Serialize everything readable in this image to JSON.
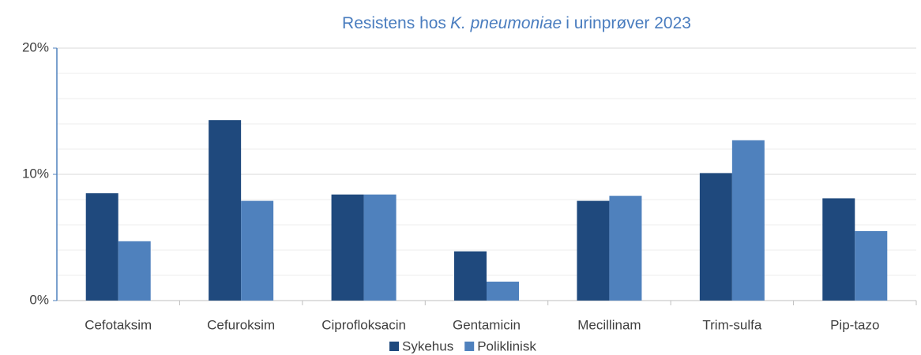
{
  "chart_data": {
    "type": "bar",
    "title": [
      "Resistens hos",
      "K. pneumoniae",
      "i urinprøver 2023"
    ],
    "categories": [
      "Cefotaksim",
      "Cefuroksim",
      "Ciprofloksacin",
      "Gentamicin",
      "Mecillinam",
      "Trim-sulfa",
      "Pip-tazo"
    ],
    "series": [
      {
        "name": "Sykehus",
        "color": "#1f497d",
        "values": [
          8.5,
          14.3,
          8.4,
          3.9,
          7.9,
          10.1,
          8.1
        ]
      },
      {
        "name": "Poliklinisk",
        "color": "#4f81bd",
        "values": [
          4.7,
          7.9,
          8.4,
          1.5,
          8.3,
          12.7,
          5.5
        ]
      }
    ],
    "ylim": [
      0,
      20
    ],
    "yticks": [
      {
        "value": 0,
        "label": "0%"
      },
      {
        "value": 10,
        "label": "10%"
      },
      {
        "value": 20,
        "label": "20%"
      }
    ],
    "minor_yticks": [
      2,
      4,
      6,
      8,
      12,
      14,
      16,
      18
    ],
    "grid": true,
    "legend": "bottom"
  }
}
